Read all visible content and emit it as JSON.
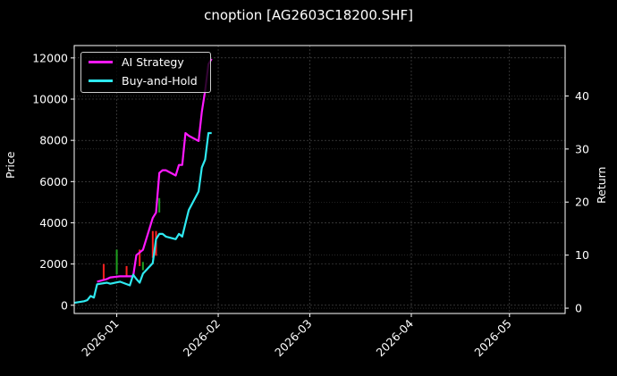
{
  "chart_data": {
    "type": "line",
    "title": "cnoption [AG2603C18200.SHF]",
    "xlabel": "",
    "ylabel": "Price",
    "ylabel_right": "Return",
    "xlim": [
      "2025-12-19",
      "2026-05-18"
    ],
    "ylim": [
      -400,
      12600
    ],
    "ylim_right": [
      -1,
      49.5
    ],
    "x_ticks": [
      "2026-01",
      "2026-02",
      "2026-03",
      "2026-04",
      "2026-05"
    ],
    "y_ticks_left": [
      0,
      2000,
      4000,
      6000,
      8000,
      10000,
      12000
    ],
    "y_ticks_right": [
      0,
      10,
      20,
      30,
      40
    ],
    "grid": true,
    "legend_position": "upper left",
    "legend": [
      "AI Strategy",
      "Buy-and-Hold"
    ],
    "colors": {
      "background": "#000000",
      "ai_strategy": "#ff19ff",
      "buy_and_hold": "#2ee9f0",
      "candle_up": "#ff2020",
      "candle_down": "#1fa01f",
      "grid": "#555555",
      "axis": "#ffffff"
    },
    "series": [
      {
        "name": "AI Strategy",
        "axis": "right",
        "x": [
          "2025-12-26",
          "2025-12-29",
          "2025-12-30",
          "2026-01-02",
          "2026-01-05",
          "2026-01-06",
          "2026-01-07",
          "2026-01-08",
          "2026-01-09",
          "2026-01-12",
          "2026-01-13",
          "2026-01-14",
          "2026-01-15",
          "2026-01-16",
          "2026-01-19",
          "2026-01-20",
          "2026-01-21",
          "2026-01-22",
          "2026-01-23",
          "2026-01-26",
          "2026-01-27",
          "2026-01-28",
          "2026-01-29",
          "2026-01-30"
        ],
        "values": [
          5.0,
          5.5,
          5.8,
          6.0,
          6.0,
          6.0,
          10.0,
          10.5,
          11.0,
          17.0,
          18.0,
          25.5,
          26.0,
          26.0,
          25.0,
          27.0,
          27.0,
          33.0,
          32.5,
          31.5,
          37.0,
          41.0,
          46.0,
          47.0
        ]
      },
      {
        "name": "Buy-and-Hold",
        "axis": "right",
        "x": [
          "2025-12-19",
          "2025-12-22",
          "2025-12-23",
          "2025-12-24",
          "2025-12-25",
          "2025-12-26",
          "2025-12-29",
          "2025-12-30",
          "2026-01-02",
          "2026-01-05",
          "2026-01-06",
          "2026-01-07",
          "2026-01-08",
          "2026-01-09",
          "2026-01-12",
          "2026-01-13",
          "2026-01-14",
          "2026-01-15",
          "2026-01-16",
          "2026-01-19",
          "2026-01-20",
          "2026-01-21",
          "2026-01-22",
          "2026-01-23",
          "2026-01-26",
          "2026-01-27",
          "2026-01-28",
          "2026-01-29",
          "2026-01-30"
        ],
        "values": [
          1.0,
          1.3,
          1.5,
          2.3,
          2.0,
          4.5,
          4.8,
          4.6,
          5.0,
          4.3,
          6.3,
          5.5,
          4.8,
          6.5,
          8.5,
          13.0,
          14.0,
          14.0,
          13.5,
          13.0,
          14.0,
          13.5,
          16.0,
          18.5,
          22.0,
          26.5,
          28.0,
          33.0,
          33.0
        ]
      }
    ],
    "candles_price_axis": {
      "note": "sparse price candles on left axis",
      "x": [
        "2025-12-28",
        "2026-01-01",
        "2026-01-04",
        "2026-01-08",
        "2026-01-09",
        "2026-01-12",
        "2026-01-13",
        "2026-01-14"
      ],
      "high": [
        2000,
        2700,
        1900,
        2700,
        2100,
        3600,
        3600,
        5200
      ],
      "low": [
        1200,
        1500,
        1400,
        1900,
        1700,
        2300,
        2400,
        4500
      ]
    }
  }
}
